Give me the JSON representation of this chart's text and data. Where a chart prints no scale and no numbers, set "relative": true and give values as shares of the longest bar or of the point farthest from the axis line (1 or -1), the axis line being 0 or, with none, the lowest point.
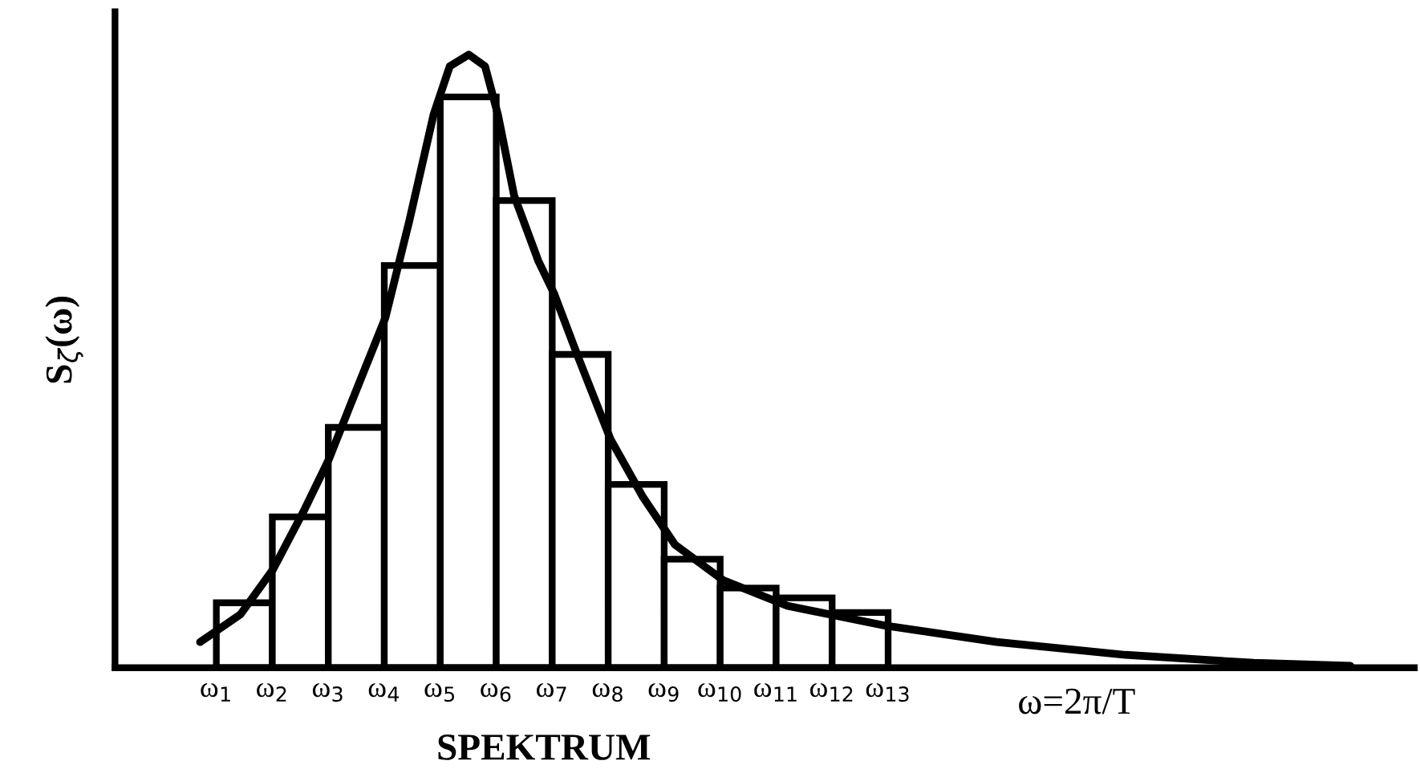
{
  "chart_data": {
    "type": "histogram",
    "relative": true,
    "ylabel": "S$_{ζ}$(ω)",
    "xlabel": "ω=2π/T",
    "annotations": [
      "SPEKTRUM"
    ],
    "bins": [
      1,
      2,
      3,
      4,
      5,
      6,
      7,
      8,
      9,
      10,
      11,
      12,
      13
    ],
    "values": [
      0.106,
      0.246,
      0.392,
      0.656,
      0.931,
      0.762,
      0.511,
      0.299,
      0.177,
      0.13,
      0.114,
      0.09
    ],
    "color": "#ffffff",
    "xlim": [
      -0.81,
      22.4
    ],
    "xticks": [
      {
        "value": 1,
        "label": "ω$_{1}$"
      },
      {
        "value": 2,
        "label": "ω$_{2}$"
      },
      {
        "value": 3,
        "label": "ω$_{3}$"
      },
      {
        "value": 4,
        "label": "ω$_{4}$"
      },
      {
        "value": 5,
        "label": "ω$_{5}$"
      },
      {
        "value": 6,
        "label": "ω$_{6}$"
      },
      {
        "value": 7,
        "label": "ω$_{7}$"
      },
      {
        "value": 8,
        "label": "ω$_{8}$"
      },
      {
        "value": 9,
        "label": "ω$_{9}$"
      },
      {
        "value": 10,
        "label": "ω$_{10}$"
      },
      {
        "value": 11,
        "label": "ω$_{11}$"
      },
      {
        "value": 12,
        "label": "ω$_{12}$"
      },
      {
        "value": 13,
        "label": "ω$_{13}$"
      }
    ],
    "series": [
      {
        "type": "line",
        "color": "#000000",
        "x": [
          0.71,
          1.43,
          2.01,
          2.58,
          3.01,
          3.44,
          4.02,
          4.45,
          4.88,
          5.17,
          5.51,
          5.8,
          6.03,
          6.32,
          6.75,
          7.03,
          7.47,
          8.04,
          8.61,
          9.19,
          10.05,
          11.2,
          12.93,
          14.94,
          17.24,
          19.53,
          21.26
        ],
        "values": [
          0.042,
          0.087,
          0.16,
          0.259,
          0.34,
          0.439,
          0.571,
          0.73,
          0.902,
          0.981,
          1.0,
          0.981,
          0.902,
          0.77,
          0.664,
          0.611,
          0.505,
          0.373,
          0.28,
          0.201,
          0.143,
          0.101,
          0.069,
          0.042,
          0.021,
          0.008,
          0.003
        ]
      }
    ],
    "grid": false,
    "legend": false
  }
}
